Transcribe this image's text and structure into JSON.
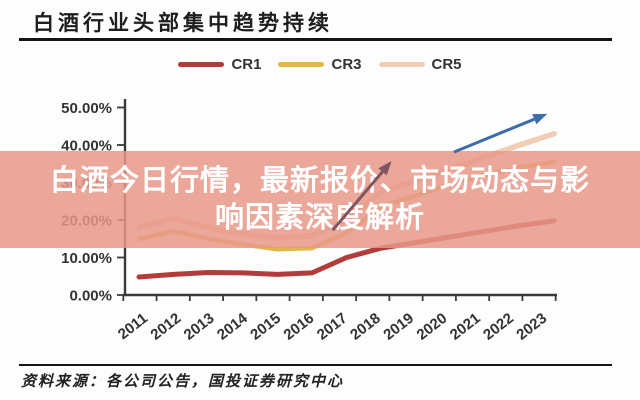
{
  "header": {
    "title": "白酒行业头部集中趋势持续"
  },
  "legend": {
    "items": [
      {
        "label": "CR1",
        "color": "#b13c39"
      },
      {
        "label": "CR3",
        "color": "#e0b84a"
      },
      {
        "label": "CR5",
        "color": "#f2cdb6"
      }
    ]
  },
  "overlay": {
    "line1": "白酒今日行情，最新报价、市场动态与影",
    "line2": "响因素深度解析",
    "background": "rgba(232,152,136,0.85)",
    "text_color": "#ffffff"
  },
  "footer": {
    "source": "资料来源：各公司公告，国投证券研究中心"
  },
  "chart_data": {
    "type": "line",
    "title": "白酒行业头部集中趋势持续",
    "x": [
      2011,
      2012,
      2013,
      2014,
      2015,
      2016,
      2017,
      2018,
      2019,
      2020,
      2021,
      2022,
      2023
    ],
    "series": [
      {
        "name": "CR1",
        "color": "#b13c39",
        "line_width": 5,
        "values": [
          4.8,
          5.5,
          6.0,
          5.9,
          5.5,
          5.9,
          10.0,
          12.5,
          14.0,
          15.5,
          17.0,
          18.5,
          19.8
        ]
      },
      {
        "name": "CR3",
        "color": "#e0b84a",
        "line_width": 4.5,
        "values": [
          15.0,
          17.0,
          15.0,
          13.5,
          12.2,
          12.5,
          16.5,
          23.5,
          26.5,
          29.5,
          32.0,
          34.0,
          35.5
        ]
      },
      {
        "name": "CR5",
        "color": "#f2cdb6",
        "line_width": 5.5,
        "values": [
          18.0,
          20.5,
          18.0,
          16.3,
          15.3,
          15.8,
          20.0,
          27.5,
          30.5,
          33.5,
          36.8,
          40.0,
          43.0
        ]
      }
    ],
    "y_ticks": [
      "0.00%",
      "10.00%",
      "20.00%",
      "30.00%",
      "40.00%",
      "50.00%"
    ],
    "ylim": [
      0,
      50
    ],
    "grid": false,
    "legend_position": "top",
    "axis_color": "#3a3a3a",
    "annotations": [
      {
        "name": "rising-trend-arrow-dark-icon",
        "type": "arrow",
        "color": "#815661",
        "from_x": 2016.6,
        "from_y": 17.3,
        "to_x": 2018.3,
        "to_y": 35.7
      },
      {
        "name": "rising-trend-arrow-blue-icon",
        "type": "arrow",
        "color": "#3d6cab",
        "from_x": 2020.1,
        "from_y": 38.1,
        "to_x": 2022.8,
        "to_y": 48.3
      }
    ]
  }
}
